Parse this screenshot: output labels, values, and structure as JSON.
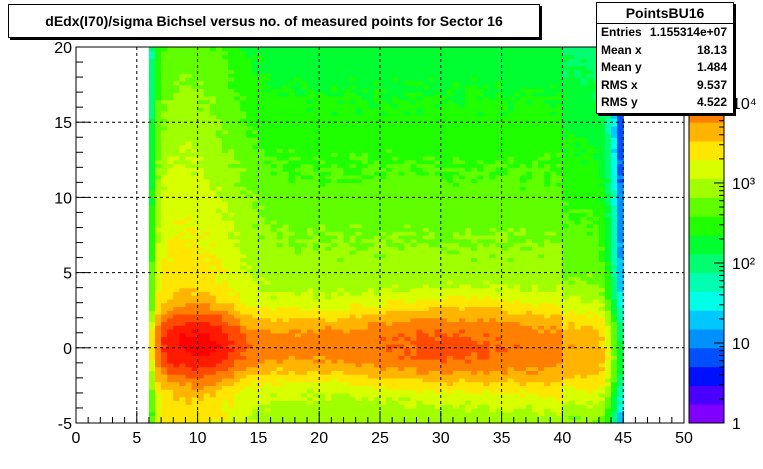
{
  "title": "dEdx(I70)/sigma Bichsel versus no. of measured points for Sector 16",
  "stats": {
    "name": "PointsBU16",
    "rows": [
      {
        "label": "Entries",
        "value": "1.155314e+07"
      },
      {
        "label": "Mean x",
        "value": "18.13"
      },
      {
        "label": "Mean y",
        "value": "1.484"
      },
      {
        "label": "RMS x",
        "value": "9.537"
      },
      {
        "label": "RMS y",
        "value": "4.522"
      }
    ]
  },
  "chart_data": {
    "type": "heatmap",
    "title": "dEdx(I70)/sigma Bichsel versus no. of measured points for Sector 16",
    "xlabel": "",
    "ylabel": "",
    "xlim": [
      0,
      50
    ],
    "ylim": [
      -5,
      20
    ],
    "x_ticks": [
      "0",
      "5",
      "10",
      "15",
      "20",
      "25",
      "30",
      "35",
      "40",
      "45",
      "50"
    ],
    "y_ticks": [
      "-5",
      "0",
      "5",
      "10",
      "15",
      "20"
    ],
    "grid": true,
    "z_scale": "log",
    "z_range": [
      1,
      50000
    ],
    "z_ticks": [
      "1",
      "10",
      "10²",
      "10³",
      "10⁴"
    ],
    "x_data_range": [
      6,
      45
    ],
    "peak": {
      "x": 10,
      "y": 0,
      "z": 30000
    },
    "band_center_y": 0,
    "legend": "stats box top-right"
  }
}
